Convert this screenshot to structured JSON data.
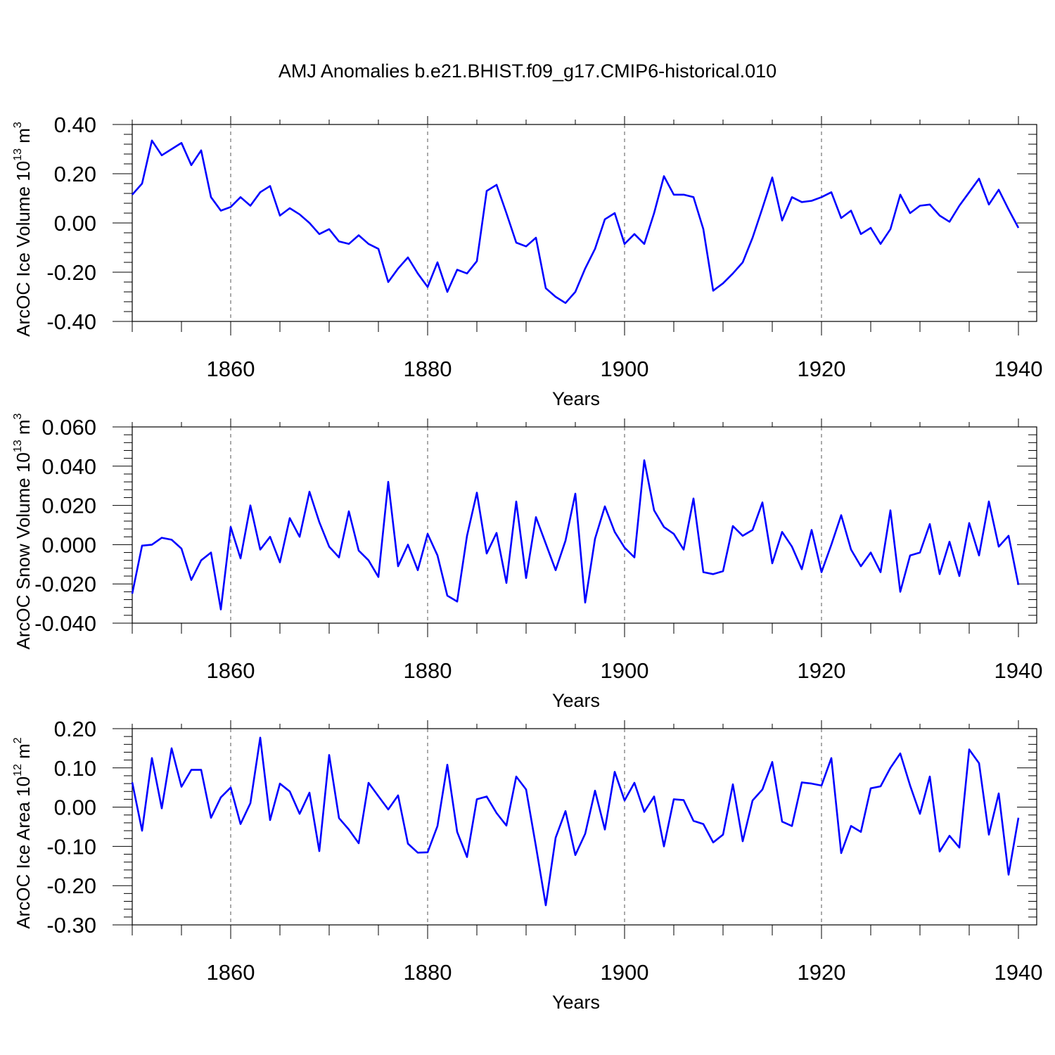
{
  "title": "AMJ Anomalies b.e21.BHIST.f09_g17.CMIP6-historical.010",
  "chart_data": [
    {
      "type": "line",
      "ylabel": {
        "text": "ArcOC Ice Volume 10",
        "exp": "13",
        "unit": " m",
        "unit_exp": "3"
      },
      "xlabel": "Years",
      "xlim": [
        1850,
        1940
      ],
      "ylim": [
        -0.4,
        0.4
      ],
      "yticks": [
        -0.4,
        -0.2,
        0.0,
        0.2,
        0.4
      ],
      "ytick_labels": [
        "-0.40",
        "-0.20",
        "0.00",
        "0.20",
        "0.40"
      ],
      "xticks": [
        1860,
        1880,
        1900,
        1920,
        1940
      ],
      "xtick_labels": [
        "1860",
        "1880",
        "1900",
        "1920",
        "1940"
      ],
      "grid": "vertical dashed at major x ticks",
      "color": "#0000ff",
      "x_start": 1850,
      "values": [
        0.115,
        0.16,
        0.335,
        0.275,
        0.3,
        0.325,
        0.235,
        0.295,
        0.105,
        0.05,
        0.065,
        0.105,
        0.07,
        0.125,
        0.15,
        0.03,
        0.06,
        0.035,
        0.0,
        -0.045,
        -0.025,
        -0.075,
        -0.085,
        -0.05,
        -0.085,
        -0.105,
        -0.24,
        -0.185,
        -0.14,
        -0.205,
        -0.26,
        -0.16,
        -0.28,
        -0.19,
        -0.205,
        -0.155,
        0.13,
        0.155,
        0.04,
        -0.08,
        -0.095,
        -0.06,
        -0.265,
        -0.3,
        -0.325,
        -0.28,
        -0.185,
        -0.105,
        0.015,
        0.04,
        -0.085,
        -0.045,
        -0.085,
        0.04,
        0.19,
        0.115,
        0.115,
        0.105,
        -0.025,
        -0.275,
        -0.245,
        -0.205,
        -0.16,
        -0.06,
        0.06,
        0.185,
        0.01,
        0.105,
        0.085,
        0.09,
        0.105,
        0.125,
        0.02,
        0.05,
        -0.045,
        -0.02,
        -0.085,
        -0.025,
        0.115,
        0.04,
        0.07,
        0.075,
        0.03,
        0.005,
        0.07,
        0.125,
        0.18,
        0.075,
        0.135,
        0.055,
        -0.02
      ]
    },
    {
      "type": "line",
      "ylabel": {
        "text": "ArcOC Snow Volume 10",
        "exp": "13",
        "unit": " m",
        "unit_exp": "3"
      },
      "xlabel": "Years",
      "xlim": [
        1850,
        1940
      ],
      "ylim": [
        -0.04,
        0.06
      ],
      "yticks": [
        -0.04,
        -0.02,
        0.0,
        0.02,
        0.04,
        0.06
      ],
      "ytick_labels": [
        "-0.040",
        "-0.020",
        "0.000",
        "0.020",
        "0.040",
        "0.060"
      ],
      "xticks": [
        1860,
        1880,
        1900,
        1920,
        1940
      ],
      "xtick_labels": [
        "1860",
        "1880",
        "1900",
        "1920",
        "1940"
      ],
      "grid": "vertical dashed at major x ticks",
      "color": "#0000ff",
      "x_start": 1850,
      "values": [
        -0.025,
        -0.0005,
        0.0,
        0.0035,
        0.0025,
        -0.002,
        -0.018,
        -0.008,
        -0.004,
        -0.033,
        0.009,
        -0.007,
        0.02,
        -0.0025,
        0.004,
        -0.009,
        0.0135,
        0.004,
        0.027,
        0.0115,
        -0.001,
        -0.0065,
        0.017,
        -0.003,
        -0.008,
        -0.0165,
        0.032,
        -0.011,
        0.0,
        -0.013,
        0.0055,
        -0.0055,
        -0.026,
        -0.029,
        0.0045,
        0.0265,
        -0.0045,
        0.006,
        -0.0195,
        0.022,
        -0.017,
        0.014,
        0.0005,
        -0.013,
        0.002,
        0.026,
        -0.0295,
        0.003,
        0.0195,
        0.0065,
        -0.0015,
        -0.0065,
        0.043,
        0.0175,
        0.009,
        0.0055,
        -0.0025,
        0.0235,
        -0.014,
        -0.015,
        -0.0135,
        0.0095,
        0.0045,
        0.0075,
        0.0215,
        -0.0095,
        0.0065,
        -0.001,
        -0.0125,
        0.0075,
        -0.014,
        0.0,
        0.015,
        -0.0025,
        -0.011,
        -0.004,
        -0.014,
        0.0175,
        -0.024,
        -0.0055,
        -0.004,
        0.0105,
        -0.015,
        0.0015,
        -0.016,
        0.011,
        -0.0055,
        0.022,
        -0.001,
        0.0045,
        -0.0205
      ]
    },
    {
      "type": "line",
      "ylabel": {
        "text": "ArcOC Ice Area 10",
        "exp": "12",
        "unit": " m",
        "unit_exp": "2"
      },
      "xlabel": "Years",
      "xlim": [
        1850,
        1940
      ],
      "ylim": [
        -0.3,
        0.2
      ],
      "yticks": [
        -0.3,
        -0.2,
        -0.1,
        0.0,
        0.1,
        0.2
      ],
      "ytick_labels": [
        "-0.30",
        "-0.20",
        "-0.10",
        "0.00",
        "0.10",
        "0.20"
      ],
      "xticks": [
        1860,
        1880,
        1900,
        1920,
        1940
      ],
      "xtick_labels": [
        "1860",
        "1880",
        "1900",
        "1920",
        "1940"
      ],
      "grid": "vertical dashed at major x ticks",
      "color": "#0000ff",
      "x_start": 1850,
      "values": [
        0.063,
        -0.06,
        0.125,
        -0.003,
        0.15,
        0.052,
        0.095,
        0.095,
        -0.027,
        0.025,
        0.05,
        -0.043,
        0.01,
        0.177,
        -0.033,
        0.06,
        0.04,
        -0.017,
        0.037,
        -0.112,
        0.133,
        -0.028,
        -0.057,
        -0.092,
        0.062,
        0.028,
        -0.006,
        0.03,
        -0.093,
        -0.116,
        -0.115,
        -0.048,
        0.108,
        -0.063,
        -0.127,
        0.02,
        0.027,
        -0.015,
        -0.047,
        0.078,
        0.045,
        -0.1,
        -0.25,
        -0.078,
        -0.01,
        -0.122,
        -0.068,
        0.042,
        -0.057,
        0.09,
        0.017,
        0.062,
        -0.012,
        0.027,
        -0.1,
        0.02,
        0.018,
        -0.035,
        -0.043,
        -0.09,
        -0.07,
        0.058,
        -0.087,
        0.017,
        0.045,
        0.115,
        -0.037,
        -0.048,
        0.063,
        0.06,
        0.055,
        0.125,
        -0.117,
        -0.048,
        -0.063,
        0.048,
        0.053,
        0.1,
        0.137,
        0.055,
        -0.017,
        0.078,
        -0.113,
        -0.073,
        -0.103,
        0.147,
        0.112,
        -0.07,
        0.035,
        -0.172,
        -0.027
      ]
    }
  ]
}
